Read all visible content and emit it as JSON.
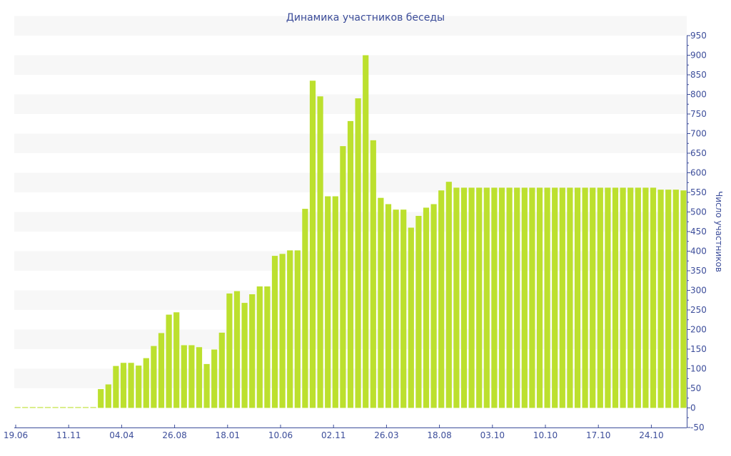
{
  "chart_data": {
    "type": "bar",
    "title": "Динамика участников беседы",
    "xlabel": "",
    "ylabel": "Число участников",
    "ylim": [
      -50,
      950
    ],
    "ytick_step": 50,
    "grid": "alternating horizontal bands",
    "y_axis_side": "right",
    "bar_color": "#bce02e",
    "band_color": "#f7f7f7",
    "axis_color": "#3c4d9a",
    "tick_every": 7,
    "tick_labels": [
      "19.06",
      "11.11",
      "04.04",
      "26.08",
      "18.01",
      "10.06",
      "02.11",
      "26.03",
      "18.08",
      "03.10",
      "10.10",
      "17.10",
      "24.10"
    ],
    "values": [
      2,
      2,
      2,
      2,
      2,
      2,
      2,
      2,
      2,
      2,
      2,
      48,
      60,
      107,
      115,
      115,
      108,
      127,
      158,
      191,
      238,
      244,
      160,
      160,
      155,
      112,
      149,
      192,
      292,
      298,
      268,
      290,
      310,
      310,
      388,
      393,
      402,
      402,
      508,
      835,
      795,
      540,
      540,
      668,
      732,
      790,
      900,
      683,
      536,
      520,
      506,
      506,
      460,
      490,
      511,
      520,
      555,
      577,
      562,
      562,
      562,
      562,
      562,
      562,
      562,
      562,
      562,
      562,
      562,
      562,
      562,
      562,
      562,
      562,
      562,
      562,
      562,
      562,
      562,
      562,
      562,
      562,
      562,
      562,
      562,
      557,
      557,
      557,
      555
    ]
  }
}
